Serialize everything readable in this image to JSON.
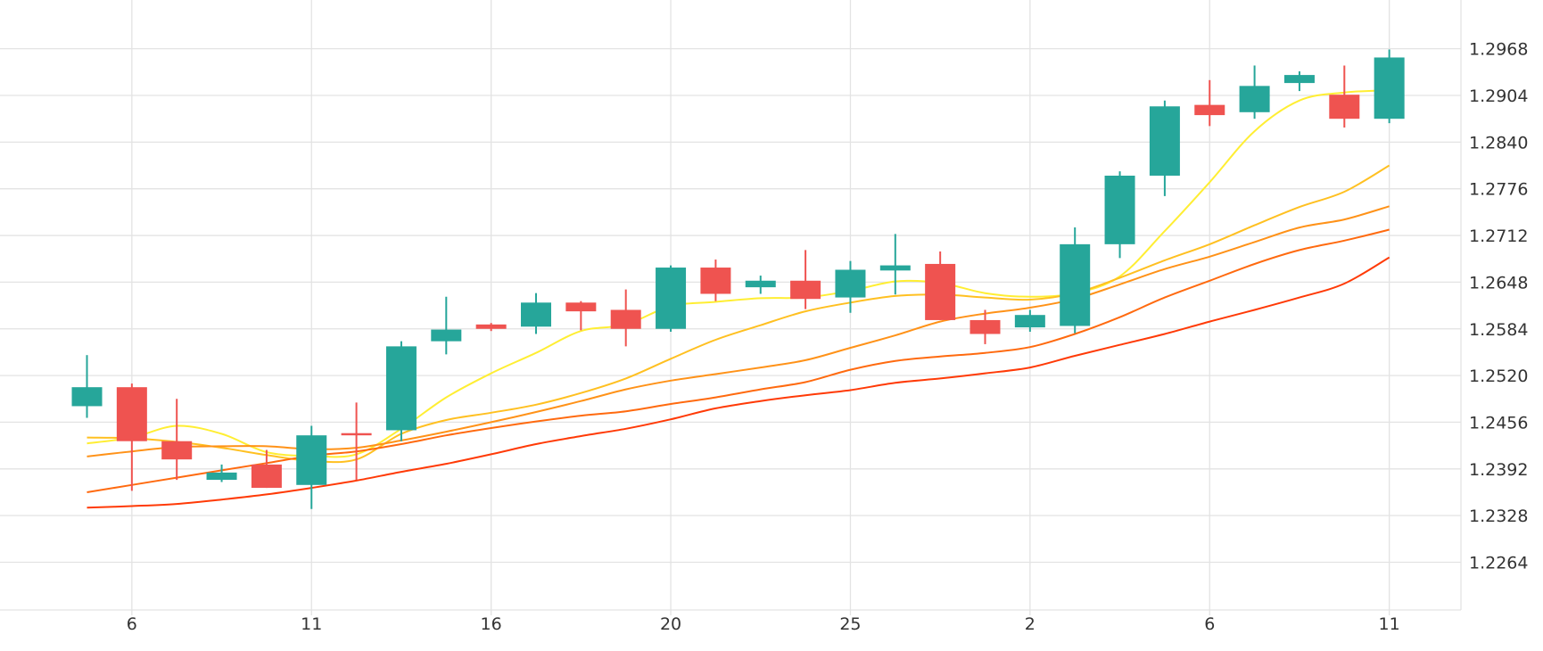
{
  "chart_data": {
    "type": "candlestick",
    "title": "",
    "xlabel": "",
    "ylabel": "",
    "x_tick_labels": [
      {
        "index": 1,
        "label": "6"
      },
      {
        "index": 5,
        "label": "11"
      },
      {
        "index": 9,
        "label": "16"
      },
      {
        "index": 13,
        "label": "20"
      },
      {
        "index": 17,
        "label": "25"
      },
      {
        "index": 21,
        "label": "2"
      },
      {
        "index": 25,
        "label": "6"
      },
      {
        "index": 29,
        "label": "11"
      }
    ],
    "y_ticks": [
      "1.2264",
      "1.2328",
      "1.2392",
      "1.2456",
      "1.2520",
      "1.2584",
      "1.2648",
      "1.2712",
      "1.2776",
      "1.2840",
      "1.2904",
      "1.2968"
    ],
    "ylim": [
      1.2201,
      1.3012
    ],
    "grid": true,
    "legend": "none",
    "colors": {
      "up": "#26a69a",
      "down": "#ef5350",
      "grid": "#e3e3e3",
      "axis_text": "#333333",
      "ma": [
        "#ffee33",
        "#ffc021",
        "#ff9218",
        "#ff6a0f",
        "#ff3a06"
      ]
    },
    "candles": [
      {
        "open": 1.2478,
        "high": 1.2548,
        "low": 1.2462,
        "close": 1.2504
      },
      {
        "open": 1.2504,
        "high": 1.2509,
        "low": 1.2362,
        "close": 1.243
      },
      {
        "open": 1.243,
        "high": 1.2488,
        "low": 1.2377,
        "close": 1.2405
      },
      {
        "open": 1.2377,
        "high": 1.2398,
        "low": 1.2374,
        "close": 1.2387
      },
      {
        "open": 1.2398,
        "high": 1.2418,
        "low": 1.2366,
        "close": 1.2366
      },
      {
        "open": 1.237,
        "high": 1.2451,
        "low": 1.2337,
        "close": 1.2438
      },
      {
        "open": 1.2441,
        "high": 1.2483,
        "low": 1.2377,
        "close": 1.2438
      },
      {
        "open": 1.2445,
        "high": 1.2567,
        "low": 1.243,
        "close": 1.256
      },
      {
        "open": 1.2567,
        "high": 1.2628,
        "low": 1.2549,
        "close": 1.2583
      },
      {
        "open": 1.259,
        "high": 1.2592,
        "low": 1.2581,
        "close": 1.2584
      },
      {
        "open": 1.2587,
        "high": 1.2633,
        "low": 1.2577,
        "close": 1.262
      },
      {
        "open": 1.262,
        "high": 1.2622,
        "low": 1.2582,
        "close": 1.2608
      },
      {
        "open": 1.261,
        "high": 1.2638,
        "low": 1.256,
        "close": 1.2584
      },
      {
        "open": 1.2584,
        "high": 1.2671,
        "low": 1.258,
        "close": 1.2668
      },
      {
        "open": 1.2668,
        "high": 1.2679,
        "low": 1.2622,
        "close": 1.2632
      },
      {
        "open": 1.2641,
        "high": 1.2657,
        "low": 1.2632,
        "close": 1.265
      },
      {
        "open": 1.265,
        "high": 1.2692,
        "low": 1.2611,
        "close": 1.2625
      },
      {
        "open": 1.2627,
        "high": 1.2677,
        "low": 1.2606,
        "close": 1.2665
      },
      {
        "open": 1.2664,
        "high": 1.2714,
        "low": 1.2631,
        "close": 1.2671
      },
      {
        "open": 1.2673,
        "high": 1.269,
        "low": 1.2596,
        "close": 1.2596
      },
      {
        "open": 1.2596,
        "high": 1.261,
        "low": 1.2563,
        "close": 1.2577
      },
      {
        "open": 1.2586,
        "high": 1.261,
        "low": 1.258,
        "close": 1.2603
      },
      {
        "open": 1.2588,
        "high": 1.2723,
        "low": 1.2578,
        "close": 1.27
      },
      {
        "open": 1.27,
        "high": 1.28,
        "low": 1.2681,
        "close": 1.2794
      },
      {
        "open": 1.2794,
        "high": 1.2897,
        "low": 1.2766,
        "close": 1.2889
      },
      {
        "open": 1.2891,
        "high": 1.2925,
        "low": 1.2862,
        "close": 1.2877
      },
      {
        "open": 1.2881,
        "high": 1.2945,
        "low": 1.2872,
        "close": 1.2917
      },
      {
        "open": 1.2921,
        "high": 1.2937,
        "low": 1.291,
        "close": 1.2932
      },
      {
        "open": 1.2905,
        "high": 1.2945,
        "low": 1.286,
        "close": 1.2872
      },
      {
        "open": 1.2872,
        "high": 1.2967,
        "low": 1.2866,
        "close": 1.2956
      }
    ],
    "series": [
      {
        "color": "#ffee33",
        "values": [
          1.2427,
          1.2435,
          1.2451,
          1.244,
          1.2415,
          1.241,
          1.2412,
          1.2447,
          1.249,
          1.2523,
          1.2551,
          1.2581,
          1.259,
          1.2615,
          1.2621,
          1.2626,
          1.2627,
          1.2636,
          1.2649,
          1.2647,
          1.2633,
          1.2628,
          1.2633,
          1.2656,
          1.2718,
          1.2785,
          1.2855,
          1.2897,
          1.2908,
          1.2911
        ]
      },
      {
        "color": "#ffc021",
        "values": [
          1.2435,
          1.2434,
          1.2429,
          1.2421,
          1.2411,
          1.2403,
          1.2405,
          1.244,
          1.2459,
          1.2469,
          1.248,
          1.2496,
          1.2516,
          1.2543,
          1.2569,
          1.2589,
          1.2608,
          1.262,
          1.2629,
          1.2631,
          1.2627,
          1.2624,
          1.2633,
          1.2654,
          1.2678,
          1.27,
          1.2726,
          1.2751,
          1.2772,
          1.2808
        ]
      },
      {
        "color": "#ff9218",
        "values": [
          1.2409,
          1.2416,
          1.2422,
          1.2423,
          1.2423,
          1.2419,
          1.2421,
          1.2431,
          1.2443,
          1.2456,
          1.247,
          1.2485,
          1.2501,
          1.2513,
          1.2522,
          1.2531,
          1.2541,
          1.2558,
          1.2575,
          1.2594,
          1.2605,
          1.2613,
          1.2625,
          1.2645,
          1.2666,
          1.2683,
          1.2703,
          1.2723,
          1.2734,
          1.2752
        ]
      },
      {
        "color": "#ff6a0f",
        "values": [
          1.236,
          1.237,
          1.238,
          1.239,
          1.24,
          1.241,
          1.2416,
          1.2426,
          1.2438,
          1.2448,
          1.2457,
          1.2465,
          1.2471,
          1.2481,
          1.249,
          1.2501,
          1.2511,
          1.2528,
          1.254,
          1.2546,
          1.2551,
          1.2559,
          1.2577,
          1.26,
          1.2627,
          1.265,
          1.2673,
          1.2692,
          1.2705,
          1.272
        ]
      },
      {
        "color": "#ff3a06",
        "values": [
          1.2339,
          1.2341,
          1.2344,
          1.235,
          1.2357,
          1.2366,
          1.2376,
          1.2388,
          1.2399,
          1.2412,
          1.2426,
          1.2437,
          1.2447,
          1.246,
          1.2475,
          1.2485,
          1.2493,
          1.25,
          1.251,
          1.2516,
          1.2523,
          1.2531,
          1.2547,
          1.2562,
          1.2577,
          1.2594,
          1.261,
          1.2627,
          1.2646,
          1.2682
        ]
      }
    ]
  }
}
